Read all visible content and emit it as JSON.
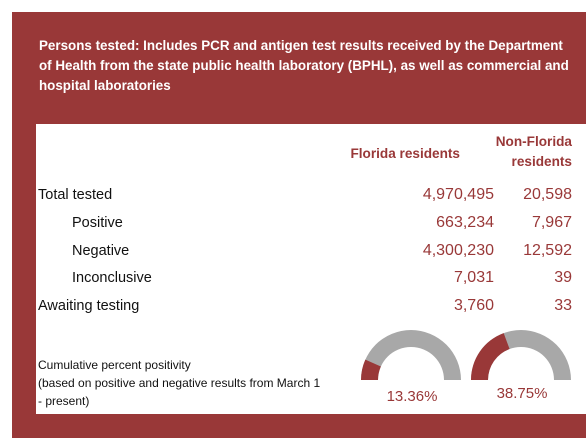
{
  "header": {
    "title": "Persons tested: Includes PCR and antigen test results received by the Department of Health from the state public health laboratory (BPHL), as well as commercial and hospital laboratories"
  },
  "columns": {
    "florida": "Florida residents",
    "nonflorida_line1": "Non-Florida",
    "nonflorida_line2": "residents"
  },
  "rows": [
    {
      "label": "Total tested",
      "florida": "4,970,495",
      "nonflorida": "20,598"
    },
    {
      "label": "Positive",
      "florida": "663,234",
      "nonflorida": "7,967"
    },
    {
      "label": "Negative",
      "florida": "4,300,230",
      "nonflorida": "12,592"
    },
    {
      "label": "Inconclusive",
      "florida": "7,031",
      "nonflorida": "39"
    },
    {
      "label": "Awaiting testing",
      "florida": "3,760",
      "nonflorida": "33"
    }
  ],
  "positivity": {
    "line1": "Cumulative percent positivity",
    "line2": "(based on positive and negative results from March 1",
    "line3": "- present)",
    "florida_pct_label": "13.36%",
    "nonflorida_pct_label": "38.75%",
    "florida_fraction": 0.1336,
    "nonflorida_fraction": 0.3875
  },
  "colors": {
    "accent": "#993838",
    "gauge_bg": "#a8a8a8"
  }
}
